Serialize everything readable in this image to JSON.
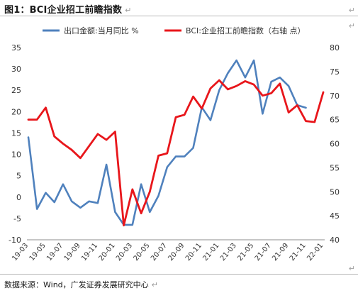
{
  "figure": {
    "title": "图1：BCI企业招工前瞻指数",
    "source": "数据来源：Wind，广发证券发展研究中心",
    "para_mark": "↵"
  },
  "colors": {
    "left_series": "#4f81bd",
    "right_series": "#e8161b",
    "axis_text": "#333333"
  },
  "chart_data": {
    "type": "line",
    "legend_position": "top",
    "grid": false,
    "x": [
      "19-03",
      "19-04",
      "19-05",
      "19-06",
      "19-07",
      "19-08",
      "19-09",
      "19-10",
      "19-11",
      "19-12",
      "20-01",
      "20-02",
      "20-03",
      "20-04",
      "20-05",
      "20-06",
      "20-07",
      "20-08",
      "20-09",
      "20-10",
      "20-11",
      "20-12",
      "21-01",
      "21-02",
      "21-03",
      "21-04",
      "21-05",
      "21-06",
      "21-07",
      "21-08",
      "21-09",
      "21-10",
      "21-11",
      "21-12",
      "22-01"
    ],
    "x_tick_labels": [
      "19-03",
      "19-05",
      "19-07",
      "19-09",
      "19-11",
      "20-01",
      "20-03",
      "20-05",
      "20-07",
      "20-09",
      "20-11",
      "21-01",
      "21-03",
      "21-05",
      "21-07",
      "21-09",
      "21-11",
      "22-01"
    ],
    "y_left": {
      "min": -10,
      "max": 35,
      "ticks": [
        -10,
        -5,
        0,
        5,
        10,
        15,
        20,
        25,
        30,
        35
      ]
    },
    "y_right": {
      "min": 40,
      "max": 80,
      "ticks": [
        40,
        45,
        50,
        55,
        60,
        65,
        70,
        75,
        80
      ]
    },
    "series": [
      {
        "name": "出口金额:当月同比 %",
        "axis": "left",
        "values": [
          14,
          -2.8,
          1,
          -1.2,
          3,
          -1,
          -2.5,
          -1,
          -1.4,
          7.6,
          -3.5,
          -6.5,
          -6.5,
          3,
          -3.5,
          0.3,
          7,
          9.5,
          9.5,
          11.5,
          21,
          18,
          25,
          29,
          32,
          28,
          32,
          19.5,
          27,
          28,
          26,
          21.5,
          20.9,
          null,
          null
        ]
      },
      {
        "name": "BCI:企业招工前瞻指数（右轴 点）",
        "axis": "right",
        "values": [
          65,
          65,
          67.5,
          61.5,
          60,
          58.7,
          57,
          59.5,
          62,
          60.8,
          62.5,
          43,
          50.5,
          45.5,
          50,
          57.5,
          58,
          65.5,
          66,
          69.8,
          67.3,
          71.5,
          73.2,
          71.3,
          72,
          73,
          72.3,
          70,
          70.5,
          72.5,
          66.5,
          68,
          64.7,
          64.5,
          70.7
        ]
      }
    ]
  }
}
